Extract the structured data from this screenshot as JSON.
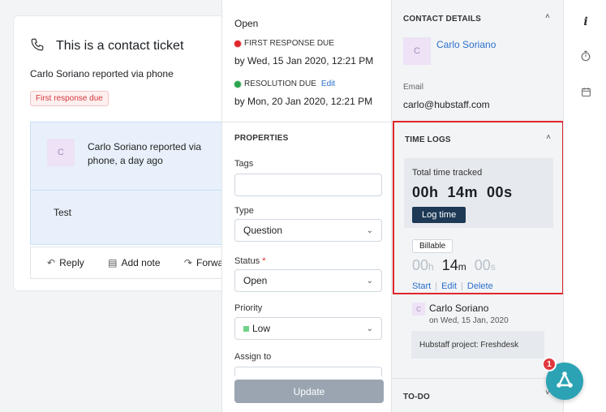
{
  "ticket": {
    "title": "This is a contact ticket",
    "reporter_name": "Carlo Soriano",
    "reporter_suffix": " reported via phone",
    "badge": "First response due",
    "conversation": {
      "avatar_letter": "C",
      "author": "Carlo Soriano",
      "meta": " reported via phone, a day ago",
      "body": "Test"
    },
    "actions": {
      "reply": "Reply",
      "add_note": "Add note",
      "forward": "Forward"
    }
  },
  "properties": {
    "status_text": "Open",
    "first_response": {
      "label": "FIRST RESPONSE DUE",
      "date": "by Wed, 15 Jan 2020, 12:21 PM"
    },
    "resolution": {
      "label": "RESOLUTION DUE",
      "edit": "Edit",
      "date": "by Mon, 20 Jan 2020, 12:21 PM"
    },
    "heading": "PROPERTIES",
    "tags_label": "Tags",
    "tags_value": "",
    "type_label": "Type",
    "type_value": "Question",
    "status_label": "Status",
    "status_required": "*",
    "status_value": "Open",
    "priority_label": "Priority",
    "priority_value": "Low",
    "assign_label": "Assign to",
    "update_label": "Update"
  },
  "contact": {
    "heading": "CONTACT DETAILS",
    "avatar_letter": "C",
    "name": "Carlo Soriano",
    "email_label": "Email",
    "email": "carlo@hubstaff.com"
  },
  "time_logs": {
    "heading": "TIME LOGS",
    "total_label": "Total time tracked",
    "total_value": "00h  14m  00s",
    "log_time_button": "Log time",
    "billable": "Billable",
    "timer": {
      "h": "00",
      "h_unit": "h",
      "m": "14",
      "m_unit": "m",
      "s": "00",
      "s_unit": "s"
    },
    "links": {
      "start": "Start",
      "edit": "Edit",
      "delete": "Delete"
    },
    "entry": {
      "avatar_letter": "C",
      "name": "Carlo Soriano",
      "date": "on Wed, 15 Jan, 2020",
      "project": "Hubstaff project: Freshdesk"
    }
  },
  "todo": {
    "heading": "TO-DO"
  },
  "fab": {
    "badge_count": "1"
  },
  "colors": {
    "accent_blue": "#2c6fcb",
    "danger_red": "#e0262b",
    "success_green": "#2ea44f",
    "navy_button": "#1d3956",
    "fab_teal": "#2ba3b4"
  },
  "icons": [
    "phone-icon",
    "reply-icon",
    "note-icon",
    "forward-icon",
    "info-icon",
    "timer-icon",
    "calendar-icon",
    "chevron-up-icon",
    "chevron-down-icon",
    "app-logo-icon"
  ]
}
